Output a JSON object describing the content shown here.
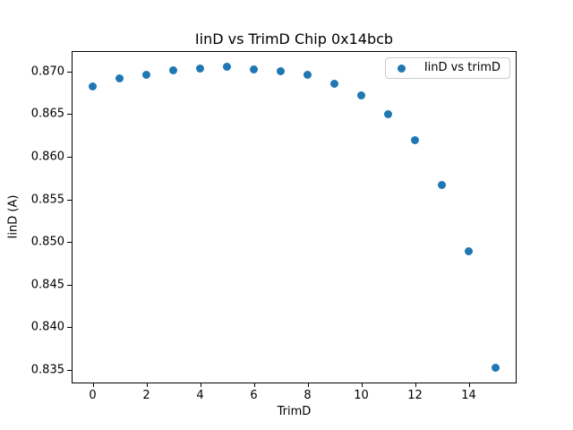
{
  "figure": {
    "background": "#ffffff"
  },
  "chart_data": {
    "type": "scatter",
    "title": "IinD vs TrimD Chip 0x14bcb",
    "xlabel": "TrimD",
    "ylabel": "IinD (A)",
    "legend": {
      "label": "IinD vs trimD",
      "position": "upper right",
      "marker": "dot"
    },
    "marker_color": "#1f77b4",
    "axis_color": "#000000",
    "x": [
      0,
      1,
      2,
      3,
      4,
      5,
      6,
      7,
      8,
      9,
      10,
      11,
      12,
      13,
      14,
      15
    ],
    "y": [
      0.8683,
      0.8692,
      0.8696,
      0.8701,
      0.8704,
      0.8706,
      0.8702,
      0.87,
      0.8696,
      0.8686,
      0.8672,
      0.865,
      0.8619,
      0.8567,
      0.8489,
      0.8352
    ],
    "xlim": [
      -0.75,
      15.75
    ],
    "ylim": [
      0.8335,
      0.8723
    ],
    "xticks": [
      "0",
      "2",
      "4",
      "6",
      "8",
      "10",
      "12",
      "14"
    ],
    "yticks": [
      "0.835",
      "0.840",
      "0.845",
      "0.850",
      "0.855",
      "0.860",
      "0.865",
      "0.870"
    ],
    "grid": false
  }
}
